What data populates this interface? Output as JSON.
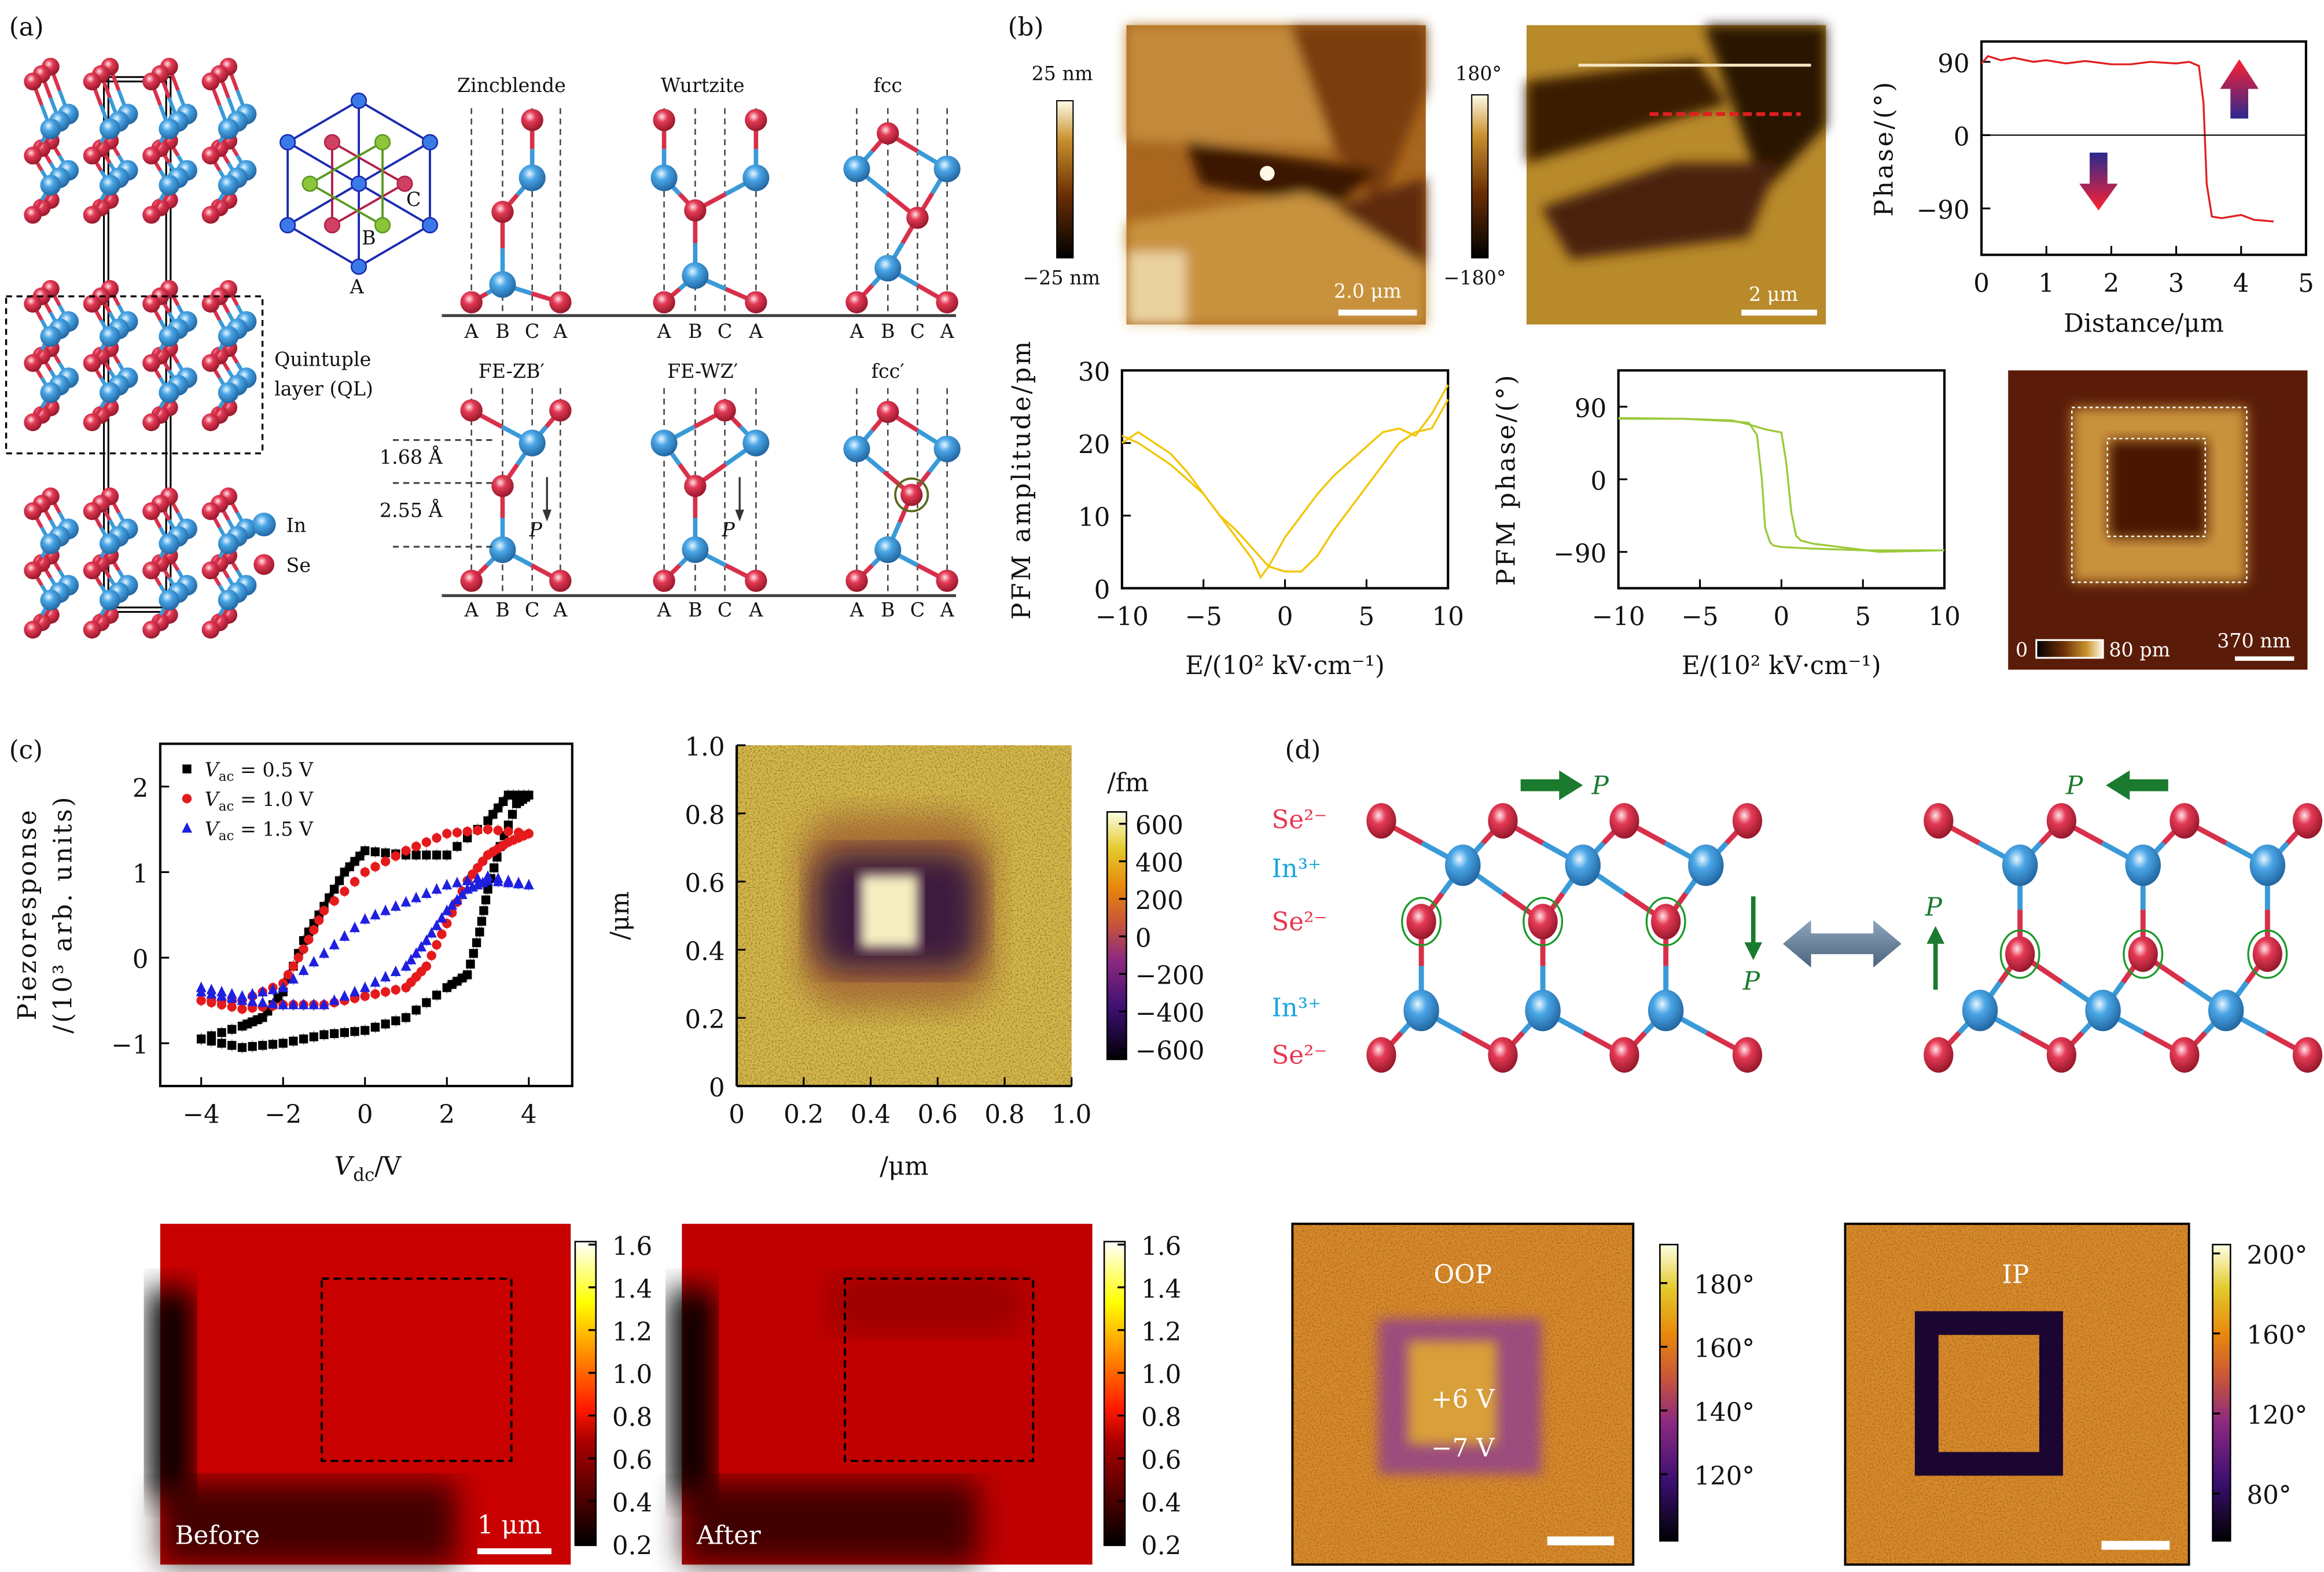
{
  "panel_labels": {
    "a": "(a)",
    "b": "(b)",
    "c": "(c)",
    "d": "(d)"
  },
  "panel_a": {
    "structures_top": [
      "Zincblende",
      "Wurtzite",
      "fcc"
    ],
    "structures_bottom": [
      "FE-ZB′",
      "FE-WZ′",
      "fcc′"
    ],
    "stacking_labels": [
      "A",
      "B",
      "C",
      "A"
    ],
    "hexagon_labels": {
      "a": "A",
      "b": "B",
      "c": "C"
    },
    "ql_label_line1": "Quintuple",
    "ql_label_line2": "layer (QL)",
    "distance_1": "1.68 Å",
    "distance_2": "2.55 Å",
    "polarization": "P",
    "legend": [
      {
        "label": "In",
        "color": "#3a8fd0"
      },
      {
        "label": "Se",
        "color": "#d8304a"
      }
    ]
  },
  "panel_b": {
    "topo_colorbar": {
      "max": "25 nm",
      "min": "−25 nm"
    },
    "topo_scalebar": "2.0 μm",
    "phase_colorbar": {
      "max": "180°",
      "min": "−180°"
    },
    "phase_scalebar": "2 μm",
    "square_colorbar": {
      "min": "0",
      "max": "80 pm"
    },
    "square_scalebar": "370 nm"
  },
  "panel_c": {
    "before_label": "Before",
    "after_label": "After",
    "scalebar": "1 μm",
    "colorbar_ticks": [
      "1.6",
      "1.4",
      "1.2",
      "1.0",
      "0.8",
      "0.6",
      "0.4",
      "0.2"
    ],
    "map_colorbar_unit": "/fm",
    "map_colorbar_ticks": [
      "600",
      "400",
      "200",
      "0",
      "−200",
      "−400",
      "−600"
    ]
  },
  "panel_d": {
    "ion_labels": [
      "Se²⁻",
      "In³⁺",
      "Se²⁻",
      "In³⁺",
      "Se²⁻"
    ],
    "polarization": "P",
    "oop_label": "OOP",
    "ip_label": "IP",
    "oop_voltage_1": "+6 V",
    "oop_voltage_2": "−7 V",
    "oop_colorbar_ticks": [
      "180°",
      "160°",
      "140°",
      "120°"
    ],
    "ip_colorbar_ticks": [
      "200°",
      "160°",
      "120°",
      "80°"
    ]
  },
  "colors": {
    "in": "#3a8fd0",
    "se": "#d8304a",
    "arrow_green": "#1a7a2e",
    "ion_se": "#e8364f",
    "ion_in": "#1aa6dc"
  },
  "chart_data": [
    {
      "id": "phase-profile",
      "type": "line",
      "xlabel": "Distance/μm",
      "ylabel": "Phase/(°)",
      "xlim": [
        0,
        5
      ],
      "ylim": [
        -147,
        115
      ],
      "xticks": [
        "0",
        "1",
        "2",
        "3",
        "4",
        "5"
      ],
      "yticks": [
        "90",
        "0",
        "−90"
      ],
      "series": [
        {
          "color": "#e02020",
          "x": [
            0,
            0.1,
            0.3,
            0.5,
            0.8,
            1,
            1.3,
            1.6,
            2,
            2.3,
            2.6,
            3,
            3.2,
            3.35,
            3.42,
            3.47,
            3.55,
            3.7,
            4,
            4.2,
            4.5
          ],
          "y": [
            88,
            97,
            92,
            95,
            90,
            92,
            88,
            91,
            87,
            87,
            90,
            88,
            90,
            85,
            40,
            -60,
            -100,
            -102,
            -98,
            -104,
            -106
          ]
        }
      ]
    },
    {
      "id": "pfm-amplitude",
      "type": "line",
      "xlabel": "E/(10² kV·cm⁻¹)",
      "ylabel": "PFM amplitude/pm",
      "xlim": [
        -10,
        10
      ],
      "ylim": [
        0,
        30
      ],
      "xticks": [
        "−10",
        "−5",
        "0",
        "5",
        "10"
      ],
      "yticks": [
        "30",
        "20",
        "10",
        "0"
      ],
      "series": [
        {
          "color": "#f2c500",
          "x": [
            -10,
            -9,
            -8,
            -7,
            -6,
            -5,
            -4,
            -3,
            -2,
            -1.5,
            -1,
            0,
            1,
            2,
            3,
            4,
            5,
            6,
            7,
            8,
            9,
            10
          ],
          "y": [
            21,
            20,
            18.5,
            17,
            15,
            13,
            10,
            7,
            4,
            1.5,
            3,
            7,
            10,
            13,
            15.5,
            17.5,
            19.5,
            21.5,
            22,
            21,
            24,
            28
          ]
        },
        {
          "color": "#f2c500",
          "x": [
            -10,
            -9,
            -8,
            -7,
            -6,
            -5,
            -4,
            -3,
            -2,
            -1,
            0,
            1,
            2,
            3,
            4,
            5,
            6,
            7,
            8,
            9,
            10
          ],
          "y": [
            20,
            21.5,
            20,
            18.5,
            16,
            13,
            10,
            8,
            5.5,
            3,
            2.3,
            2.3,
            4.5,
            8,
            11,
            14,
            17,
            20,
            21.5,
            22,
            26
          ]
        }
      ]
    },
    {
      "id": "pfm-phase",
      "type": "line",
      "xlabel": "E/(10² kV·cm⁻¹)",
      "ylabel": "PFM phase/(°)",
      "xlim": [
        -10,
        10
      ],
      "ylim": [
        -135,
        135
      ],
      "xticks": [
        "−10",
        "−5",
        "0",
        "5",
        "10"
      ],
      "yticks": [
        "90",
        "0",
        "−90"
      ],
      "series": [
        {
          "color": "#9cc93c",
          "x": [
            -10,
            -6,
            -3,
            -2,
            -1.5,
            -1.2,
            -1,
            -0.7,
            -0.5,
            0,
            2,
            5,
            8,
            10
          ],
          "y": [
            75,
            75,
            72,
            70,
            55,
            0,
            -60,
            -78,
            -82,
            -84,
            -86,
            -88,
            -88,
            -88
          ]
        },
        {
          "color": "#9cc93c",
          "x": [
            -10,
            -6,
            -3,
            -2,
            -1,
            0,
            0.3,
            0.6,
            0.9,
            1.2,
            2,
            4,
            6,
            10
          ],
          "y": [
            76,
            75,
            73,
            68,
            62,
            58,
            20,
            -40,
            -70,
            -76,
            -80,
            -85,
            -90,
            -88
          ]
        }
      ]
    },
    {
      "id": "piezoresponse",
      "type": "scatter",
      "xlabel": "V_dc/V",
      "ylabel": "Piezoresponse /(10³ arb. units)",
      "xlim": [
        -5,
        5.06
      ],
      "ylim": [
        -1.5,
        2.5
      ],
      "xticks": [
        "−4",
        "−2",
        "0",
        "2",
        "4"
      ],
      "yticks": [
        "2",
        "1",
        "0",
        "−1"
      ],
      "legend_position": "top-left",
      "series": [
        {
          "name_main": "V",
          "name_sub": "ac",
          "name_rest": " = 0.5 V",
          "color": "#000000",
          "marker": "square",
          "x": [
            -4,
            -3,
            -2,
            -1,
            0,
            1,
            2,
            2.5,
            2.8,
            3,
            3.3,
            3.7,
            4,
            3.5,
            3,
            2,
            1,
            0,
            -0.5,
            -1,
            -1.5,
            -2,
            -2.5,
            -3,
            -4
          ],
          "y": [
            -0.95,
            -1.05,
            -1,
            -0.9,
            -0.85,
            -0.7,
            -0.35,
            -0.2,
            0.3,
            0.8,
            1.3,
            1.8,
            1.9,
            1.9,
            1.6,
            1.2,
            1.2,
            1.25,
            1.0,
            0.6,
            0.2,
            -0.4,
            -0.7,
            -0.8,
            -0.95
          ]
        },
        {
          "name_main": "V",
          "name_sub": "ac",
          "name_rest": " = 1.0 V",
          "color": "#e41a1c",
          "marker": "circle",
          "x": [
            -4,
            -3,
            -2,
            -1,
            0,
            1,
            1.5,
            2,
            2.5,
            3,
            3.5,
            4,
            3,
            2,
            1,
            0,
            -1,
            -1.5,
            -2,
            -3,
            -4
          ],
          "y": [
            -0.5,
            -0.6,
            -0.55,
            -0.55,
            -0.45,
            -0.35,
            -0.1,
            0.4,
            0.9,
            1.2,
            1.35,
            1.45,
            1.5,
            1.45,
            1.25,
            1.0,
            0.55,
            0.1,
            -0.3,
            -0.5,
            -0.5
          ]
        },
        {
          "name_main": "V",
          "name_sub": "ac",
          "name_rest": " = 1.5 V",
          "color": "#1f1fe0",
          "marker": "triangle",
          "x": [
            -4,
            -3,
            -2,
            -1,
            0,
            1,
            1.5,
            2,
            2.5,
            3,
            4,
            3,
            2,
            1,
            0,
            -1,
            -2,
            -3,
            -4
          ],
          "y": [
            -0.4,
            -0.5,
            -0.55,
            -0.55,
            -0.35,
            -0.1,
            0.2,
            0.55,
            0.8,
            0.9,
            0.85,
            0.95,
            0.85,
            0.65,
            0.45,
            0.05,
            -0.35,
            -0.45,
            -0.35
          ]
        }
      ]
    },
    {
      "id": "pfm-map",
      "type": "heatmap",
      "xlabel": "/μm",
      "ylabel": "/μm",
      "xlim": [
        0,
        1
      ],
      "ylim": [
        0,
        1
      ],
      "xticks": [
        "0",
        "0.2",
        "0.4",
        "0.6",
        "0.8",
        "1.0"
      ],
      "yticks": [
        "1.0",
        "0.8",
        "0.6",
        "0.4",
        "0.2",
        "0"
      ]
    }
  ]
}
